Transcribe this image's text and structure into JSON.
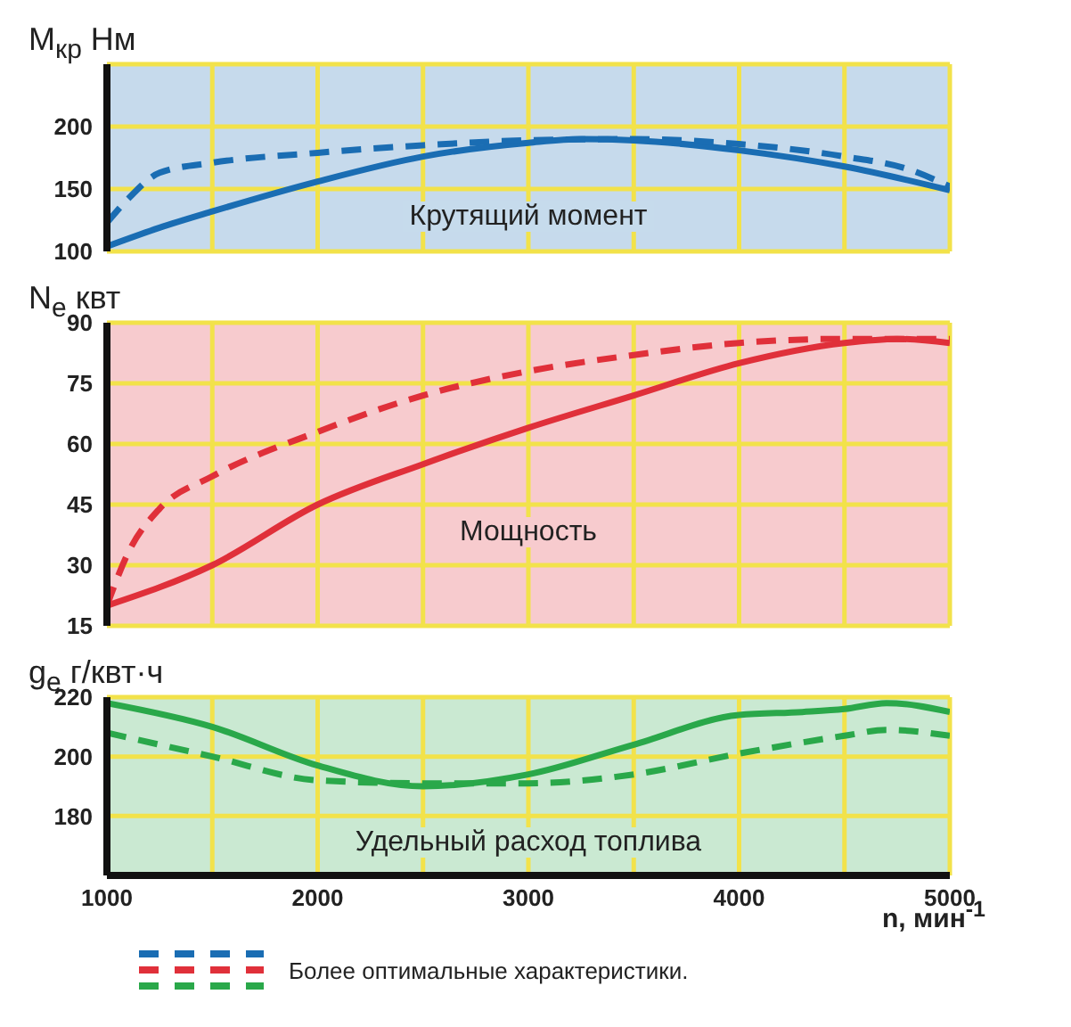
{
  "chart_data": [
    {
      "type": "line",
      "ylabel": "M$_{кр}$ Нм",
      "annotations": [
        "Крутящий момент"
      ],
      "xlim": [
        1000,
        5000
      ],
      "xticks": [
        1000,
        {
          "value": 1500,
          "label": null
        },
        2000,
        {
          "value": 2500,
          "label": null
        },
        3000,
        {
          "value": 3500,
          "label": null
        },
        4000,
        {
          "value": 4500,
          "label": null
        },
        5000
      ],
      "ylim": [
        100,
        250
      ],
      "yticks": [
        100,
        150,
        200,
        {
          "value": 250,
          "label": null
        }
      ],
      "grid": true,
      "tick_labels": "y",
      "marker": "none",
      "series": [
        {
          "color": "#1a6db3",
          "line_style": "solid",
          "x": [
            1000,
            1250,
            1500,
            2000,
            2500,
            3000,
            3250,
            3500,
            4000,
            4500,
            5000
          ],
          "values": [
            104,
            119,
            132,
            156,
            176,
            187,
            190,
            189,
            181,
            168,
            149
          ]
        },
        {
          "color": "#1a6db3",
          "line_style": "dashed",
          "x": [
            1000,
            1100,
            1250,
            1500,
            2000,
            2500,
            3000,
            3500,
            4000,
            4500,
            4800,
            5000
          ],
          "values": [
            123,
            142,
            163,
            171,
            179,
            185,
            189,
            190,
            186,
            176,
            166,
            152
          ]
        }
      ]
    },
    {
      "type": "line",
      "ylabel": "N$_{e}$ квт",
      "annotations": [
        "Мощность"
      ],
      "xlim": [
        1000,
        5000
      ],
      "xticks": [
        1000,
        {
          "value": 1500,
          "label": null
        },
        2000,
        {
          "value": 2500,
          "label": null
        },
        3000,
        {
          "value": 3500,
          "label": null
        },
        4000,
        {
          "value": 4500,
          "label": null
        },
        5000
      ],
      "ylim": [
        15,
        90
      ],
      "yticks": [
        15,
        30,
        45,
        60,
        75,
        90
      ],
      "grid": true,
      "tick_labels": "y",
      "marker": "none",
      "series": [
        {
          "color": "#e0303a",
          "line_style": "solid",
          "x": [
            1000,
            1500,
            2000,
            2500,
            3000,
            3500,
            4000,
            4500,
            4750,
            5000
          ],
          "values": [
            20,
            30,
            45,
            55,
            64,
            72,
            80,
            85,
            86,
            85
          ]
        },
        {
          "color": "#e0303a",
          "line_style": "dashed",
          "x": [
            1000,
            1100,
            1250,
            1500,
            2000,
            2500,
            3000,
            3500,
            4000,
            4500,
            5000
          ],
          "values": [
            20,
            33,
            44,
            52,
            63,
            72,
            78,
            82,
            85,
            86,
            86
          ]
        }
      ]
    },
    {
      "type": "line",
      "ylabel": "g$_{e}$ г/квт·ч",
      "xlabel": "n, мин$^{-1}$",
      "annotations": [
        "Удельный расход топлива"
      ],
      "xlim": [
        1000,
        5000
      ],
      "xticks": [
        1000,
        {
          "value": 1500,
          "label": null
        },
        2000,
        {
          "value": 2500,
          "label": null
        },
        3000,
        {
          "value": 3500,
          "label": null
        },
        4000,
        {
          "value": 4500,
          "label": null
        },
        5000
      ],
      "ylim": [
        160,
        220
      ],
      "yticks": [
        {
          "value": 160,
          "label": null
        },
        180,
        200,
        220
      ],
      "grid": true,
      "legend": "bottom",
      "marker": "none",
      "series": [
        {
          "color": "#2aa84a",
          "line_style": "solid",
          "x": [
            1000,
            1500,
            2000,
            2500,
            3000,
            3500,
            4000,
            4300,
            4500,
            4700,
            5000
          ],
          "values": [
            218,
            210,
            197,
            190,
            194,
            204,
            214,
            215,
            216,
            218,
            215
          ]
        },
        {
          "name": "Более оптимальные характеристики.",
          "color": "#2aa84a",
          "line_style": "dashed",
          "x": [
            1000,
            1500,
            2000,
            2500,
            3000,
            3500,
            4000,
            4500,
            4700,
            5000
          ],
          "values": [
            208,
            200,
            192,
            191,
            191,
            194,
            201,
            207,
            209,
            207
          ]
        }
      ]
    }
  ]
}
